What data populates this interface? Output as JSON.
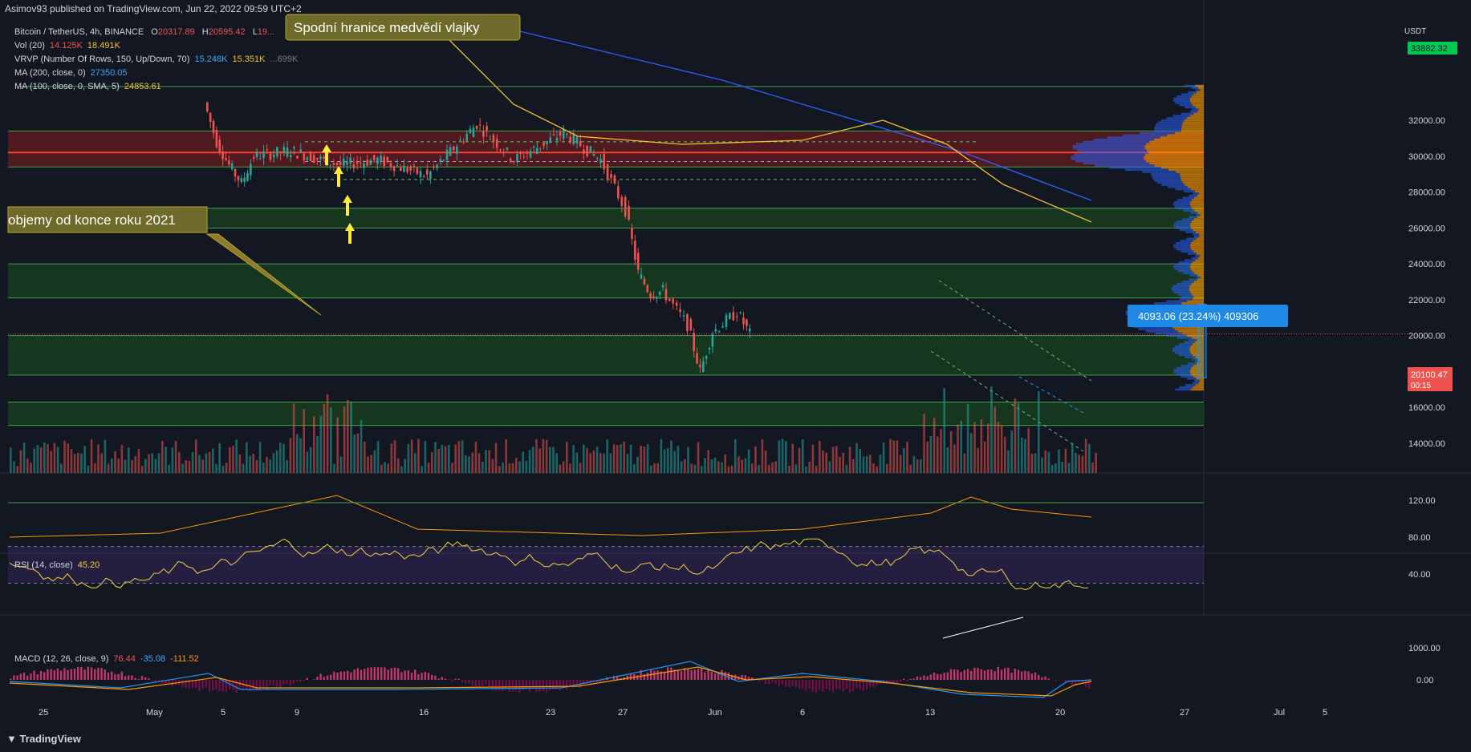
{
  "header": {
    "published": "Asimov93 published on TradingView.com, Jun 22, 2022 09:59 UTC+2"
  },
  "legend": {
    "symbol": "Bitcoin / TetherUS, 4h, BINANCE",
    "ohlc": {
      "o_label": "O",
      "o": "20317.89",
      "h_label": "H",
      "h": "20595.42",
      "l_label": "L",
      "l": "19..."
    },
    "vol": {
      "label": "Vol (20)",
      "v1": "14.125K",
      "v2": "18.491K"
    },
    "vrvp": {
      "label": "VRVP (Number Of Rows, 150, Up/Down, 70)",
      "v1": "15.248K",
      "v2": "15.351K",
      "v3": "...699K"
    },
    "ma200": {
      "label": "MA (200, close, 0)",
      "value": "27350.05"
    },
    "ma100": {
      "label": "MA (100, close, 0, SMA, 5)",
      "value": "24853.61"
    },
    "rsi": {
      "label": "RSI (14, close)",
      "value": "45.20"
    },
    "macd": {
      "label": "MACD (12, 26, close, 9)",
      "v1": "76.44",
      "v2": "-35.08",
      "v3": "-111.52"
    }
  },
  "annotations": {
    "bear_flag": "Spodní hranice medvědí vlajky",
    "volumes": "objemy od konce roku 2021",
    "measure": "4093.06 (23.24%) 409306"
  },
  "price_axis": {
    "unit": "USDT",
    "ticks": [
      "32000.00",
      "30000.00",
      "28000.00",
      "26000.00",
      "24000.00",
      "22000.00",
      "20000.00",
      "18000.00",
      "16000.00",
      "14000.00"
    ],
    "top_tag": "33882.32",
    "current_price": "20100.47",
    "countdown": "00:15"
  },
  "rsi_axis": {
    "ticks": [
      "120.00",
      "80.00",
      "40.00"
    ]
  },
  "macd_axis": {
    "ticks": [
      "1000.00",
      "0.00"
    ]
  },
  "time_axis": {
    "ticks": [
      "25",
      "May",
      "5",
      "9",
      "16",
      "23",
      "27",
      "Jun",
      "6",
      "13",
      "20",
      "27",
      "Jul",
      "5"
    ]
  },
  "brand": "TradingView",
  "colors": {
    "background": "#131722",
    "up": "#26a69a",
    "down": "#ef5350",
    "ma200": "#2962ff",
    "ma100": "#f2c12e",
    "rsi": "#f5d142",
    "green_zone": "#1b5e20",
    "red_zone": "#7f1d1d",
    "measure": "#2196f3"
  },
  "chart_data": {
    "type": "candlestick",
    "symbol": "Bitcoin / TetherUS",
    "timeframe": "4h",
    "price_range": [
      13000,
      33900
    ],
    "key_levels": [
      31400,
      30200,
      29400,
      27100,
      26000,
      24000,
      22100,
      20000,
      17800,
      16300,
      15000
    ],
    "support_resistance_zones": [
      {
        "from": 29400,
        "to": 31400,
        "color": "red"
      },
      {
        "from": 26000,
        "to": 27100,
        "color": "green"
      },
      {
        "from": 22100,
        "to": 24000,
        "color": "green"
      },
      {
        "from": 17800,
        "to": 20000,
        "color": "green"
      },
      {
        "from": 15000,
        "to": 16300,
        "color": "green"
      }
    ],
    "price_path": [
      {
        "date": "2022-05-09",
        "price": 33000
      },
      {
        "date": "2022-05-10",
        "price": 30800
      },
      {
        "date": "2022-05-11",
        "price": 29500
      },
      {
        "date": "2022-05-12",
        "price": 28500
      },
      {
        "date": "2022-05-13",
        "price": 30000
      },
      {
        "date": "2022-05-16",
        "price": 30300
      },
      {
        "date": "2022-05-20",
        "price": 29500
      },
      {
        "date": "2022-05-23",
        "price": 29800
      },
      {
        "date": "2022-05-27",
        "price": 28900
      },
      {
        "date": "2022-05-31",
        "price": 31800
      },
      {
        "date": "2022-06-03",
        "price": 29800
      },
      {
        "date": "2022-06-07",
        "price": 31300
      },
      {
        "date": "2022-06-10",
        "price": 29800
      },
      {
        "date": "2022-06-12",
        "price": 27000
      },
      {
        "date": "2022-06-13",
        "price": 23500
      },
      {
        "date": "2022-06-14",
        "price": 22300
      },
      {
        "date": "2022-06-15",
        "price": 22500
      },
      {
        "date": "2022-06-17",
        "price": 20600
      },
      {
        "date": "2022-06-18",
        "price": 18000
      },
      {
        "date": "2022-06-19",
        "price": 20200
      },
      {
        "date": "2022-06-21",
        "price": 21300
      },
      {
        "date": "2022-06-22",
        "price": 20100
      }
    ],
    "rsi": {
      "period": 14,
      "value": 45.2,
      "bands": [
        30,
        70
      ]
    },
    "macd": {
      "fast": 12,
      "slow": 26,
      "signal": 9,
      "values": [
        76.44,
        -35.08,
        -111.52
      ]
    }
  }
}
